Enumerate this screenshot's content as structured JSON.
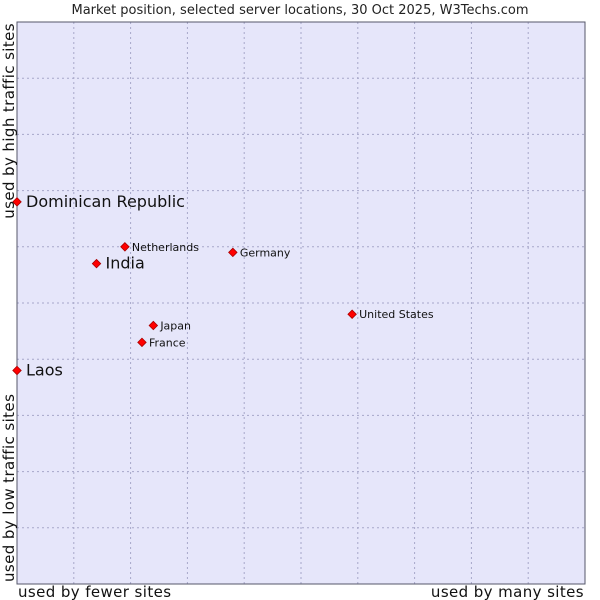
{
  "chart_data": {
    "type": "scatter",
    "title": "Market position, selected server locations, 30 Oct 2025, W3Techs.com",
    "xlabel_left": "used by fewer sites",
    "xlabel_right": "used by many sites",
    "ylabel_bottom": "used by low traffic sites",
    "ylabel_top": "used by high traffic sites",
    "xlim": [
      0,
      10
    ],
    "ylim": [
      0,
      10
    ],
    "grid": true,
    "points": [
      {
        "name": "Dominican Republic",
        "x": 0.0,
        "y": 6.8,
        "size": "large"
      },
      {
        "name": "Netherlands",
        "x": 1.9,
        "y": 6.0,
        "size": "small"
      },
      {
        "name": "India",
        "x": 1.4,
        "y": 5.7,
        "size": "large"
      },
      {
        "name": "Germany",
        "x": 3.8,
        "y": 5.9,
        "size": "small"
      },
      {
        "name": "United States",
        "x": 5.9,
        "y": 4.8,
        "size": "small"
      },
      {
        "name": "Japan",
        "x": 2.4,
        "y": 4.6,
        "size": "small"
      },
      {
        "name": "France",
        "x": 2.2,
        "y": 4.3,
        "size": "small"
      },
      {
        "name": "Laos",
        "x": 0.0,
        "y": 3.8,
        "size": "large"
      }
    ]
  }
}
